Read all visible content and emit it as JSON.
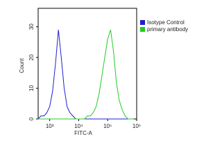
{
  "chart_data": {
    "type": "line",
    "xlabel": "FITC-A",
    "ylabel": "Count",
    "log_x": true,
    "x": [
      398,
      501,
      631,
      794,
      1000,
      1259,
      1585,
      1995,
      2512,
      3162,
      3981,
      5012,
      6310,
      7943,
      10000,
      12589,
      15849,
      19953,
      25119,
      31623,
      39811,
      50119,
      63096,
      79433,
      100000,
      125893,
      158489,
      199526,
      251189,
      316228,
      398107,
      501187,
      630957,
      794328
    ],
    "series": [
      {
        "name": "Isotype Control",
        "color": "#1f1fd0",
        "values": [
          0,
          1,
          1,
          2,
          4,
          9,
          18,
          29,
          20,
          10,
          4,
          2,
          1,
          0,
          0,
          0,
          0,
          0,
          0,
          0,
          0,
          0,
          0,
          0,
          0,
          0,
          0,
          0,
          0,
          0,
          0,
          0,
          0,
          0
        ]
      },
      {
        "name": "primary antibody",
        "color": "#22cc22",
        "values": [
          0,
          0,
          0,
          0,
          0,
          0,
          0,
          0,
          0,
          0,
          0,
          0,
          0,
          0,
          0,
          0,
          0,
          1,
          1,
          2,
          4,
          8,
          14,
          20,
          26,
          29,
          22,
          12,
          6,
          3,
          1,
          0,
          0,
          0
        ]
      }
    ],
    "xlim": [
      400,
      1000000
    ],
    "xticks": [
      {
        "value": 1000,
        "label": "10³"
      },
      {
        "value": 10000,
        "label": "10⁴"
      },
      {
        "value": 100000,
        "label": "10⁵"
      },
      {
        "value": 1000000,
        "label": "10⁶"
      }
    ],
    "ylim": [
      0,
      36
    ],
    "yticks": [
      0,
      10,
      20,
      30
    ],
    "legend": "top-right"
  }
}
